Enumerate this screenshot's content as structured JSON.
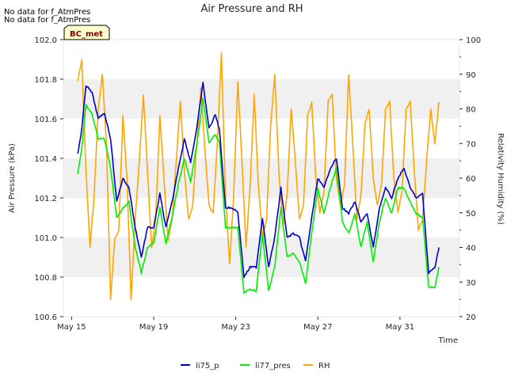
{
  "notes": [
    "No data for f_AtmPres",
    "No data for f_AtmPres"
  ],
  "badge": "BC_met",
  "chart_data": {
    "type": "line",
    "title": "Air Pressure and RH",
    "xlabel": "Time",
    "ylabel": "Air Pressure (kPa)",
    "y2label": "Relativity Humidity (%)",
    "xlim_days": [
      14.6,
      33.9
    ],
    "ylim": [
      100.6,
      102.0
    ],
    "y2lim": [
      20,
      100
    ],
    "x_ticks": [
      {
        "day": 15,
        "label": "May 15"
      },
      {
        "day": 19,
        "label": "May 19"
      },
      {
        "day": 23,
        "label": "May 23"
      },
      {
        "day": 27,
        "label": "May 27"
      },
      {
        "day": 31,
        "label": "May 31"
      }
    ],
    "y_ticks": [
      "100.6",
      "100.8",
      "101.0",
      "101.2",
      "101.4",
      "101.6",
      "101.8",
      "102.0"
    ],
    "y2_ticks": [
      "20",
      "30",
      "40",
      "50",
      "60",
      "70",
      "80",
      "90",
      "100"
    ],
    "bands": [
      [
        100.8,
        101.0
      ],
      [
        101.2,
        101.4
      ],
      [
        101.6,
        101.8
      ]
    ],
    "legend_position": "bottom-center",
    "colors": {
      "li75_p": "#0000cc",
      "li77_pres": "#00ee00",
      "RH": "#ffa500",
      "band": "#f0f0f0"
    },
    "series": [
      {
        "name": "li75_p",
        "axis": "left",
        "x": [
          15.3,
          15.5,
          15.7,
          16.0,
          16.3,
          16.6,
          16.9,
          17.2,
          17.5,
          17.8,
          18.1,
          18.4,
          18.7,
          19.0,
          19.3,
          19.6,
          19.9,
          20.2,
          20.5,
          20.8,
          21.1,
          21.4,
          21.7,
          22.0,
          22.2,
          22.5,
          22.8,
          23.1,
          23.4,
          23.7,
          24.0,
          24.3,
          24.6,
          24.9,
          25.2,
          25.5,
          25.8,
          26.1,
          26.4,
          26.7,
          27.0,
          27.3,
          27.6,
          27.9,
          28.2,
          28.5,
          28.8,
          29.1,
          29.4,
          29.7,
          30.0,
          30.3,
          30.6,
          30.9,
          31.2,
          31.5,
          31.8,
          32.1,
          32.4,
          32.7,
          32.9
        ],
        "y": [
          101.42,
          101.55,
          101.77,
          101.73,
          101.6,
          101.63,
          101.5,
          101.18,
          101.3,
          101.25,
          101.05,
          100.9,
          101.05,
          101.05,
          101.22,
          101.05,
          101.18,
          101.35,
          101.5,
          101.38,
          101.55,
          101.78,
          101.55,
          101.62,
          101.55,
          101.15,
          101.15,
          101.13,
          100.8,
          100.85,
          100.85,
          101.1,
          100.85,
          101.0,
          101.25,
          101.0,
          101.02,
          101.0,
          100.88,
          101.1,
          101.3,
          101.25,
          101.35,
          101.4,
          101.15,
          101.12,
          101.18,
          101.08,
          101.12,
          100.95,
          101.15,
          101.25,
          101.2,
          101.3,
          101.35,
          101.25,
          101.2,
          101.22,
          100.82,
          100.85,
          100.95
        ]
      },
      {
        "name": "li77_pres",
        "axis": "left",
        "x": [
          15.3,
          15.5,
          15.7,
          16.0,
          16.3,
          16.6,
          16.9,
          17.2,
          17.5,
          17.8,
          18.1,
          18.4,
          18.7,
          19.0,
          19.3,
          19.6,
          19.9,
          20.2,
          20.5,
          20.8,
          21.1,
          21.4,
          21.7,
          22.0,
          22.2,
          22.5,
          22.8,
          23.1,
          23.4,
          23.7,
          24.0,
          24.3,
          24.6,
          24.9,
          25.2,
          25.5,
          25.8,
          26.1,
          26.4,
          26.7,
          27.0,
          27.3,
          27.6,
          27.9,
          28.2,
          28.5,
          28.8,
          29.1,
          29.4,
          29.7,
          30.0,
          30.3,
          30.6,
          30.9,
          31.2,
          31.5,
          31.8,
          32.1,
          32.4,
          32.7,
          32.9
        ],
        "y": [
          101.32,
          101.45,
          101.67,
          101.62,
          101.5,
          101.5,
          101.35,
          101.1,
          101.15,
          101.18,
          100.95,
          100.82,
          100.95,
          100.97,
          101.15,
          100.97,
          101.1,
          101.27,
          101.4,
          101.28,
          101.47,
          101.7,
          101.48,
          101.52,
          101.48,
          101.05,
          101.05,
          101.05,
          100.72,
          100.74,
          100.73,
          101.02,
          100.73,
          100.85,
          101.15,
          100.9,
          100.92,
          100.88,
          100.77,
          101.02,
          101.25,
          101.12,
          101.25,
          101.35,
          101.08,
          101.02,
          101.12,
          100.95,
          101.08,
          100.88,
          101.08,
          101.2,
          101.12,
          101.25,
          101.25,
          101.18,
          101.12,
          101.1,
          100.75,
          100.75,
          100.85
        ]
      },
      {
        "name": "RH",
        "axis": "right",
        "x": [
          15.3,
          15.5,
          15.7,
          15.9,
          16.1,
          16.3,
          16.5,
          16.7,
          16.9,
          17.1,
          17.3,
          17.5,
          17.7,
          17.9,
          18.1,
          18.3,
          18.5,
          18.7,
          18.9,
          19.1,
          19.3,
          19.5,
          19.7,
          19.9,
          20.1,
          20.3,
          20.5,
          20.7,
          20.9,
          21.1,
          21.3,
          21.5,
          21.7,
          21.9,
          22.1,
          22.3,
          22.5,
          22.7,
          22.9,
          23.1,
          23.3,
          23.5,
          23.7,
          23.9,
          24.1,
          24.3,
          24.5,
          24.7,
          24.9,
          25.1,
          25.3,
          25.5,
          25.7,
          25.9,
          26.1,
          26.3,
          26.5,
          26.7,
          26.9,
          27.1,
          27.3,
          27.5,
          27.7,
          27.9,
          28.1,
          28.3,
          28.5,
          28.7,
          28.9,
          29.1,
          29.3,
          29.5,
          29.7,
          29.9,
          30.1,
          30.3,
          30.5,
          30.7,
          30.9,
          31.1,
          31.3,
          31.5,
          31.7,
          31.9,
          32.1,
          32.3,
          32.5,
          32.7,
          32.9
        ],
        "y": [
          88,
          94,
          62,
          40,
          55,
          80,
          90,
          70,
          25,
          42,
          45,
          78,
          60,
          25,
          48,
          65,
          84,
          62,
          40,
          48,
          78,
          60,
          42,
          48,
          65,
          82,
          62,
          48,
          52,
          70,
          86,
          68,
          52,
          50,
          70,
          96,
          55,
          35,
          55,
          88,
          65,
          40,
          58,
          84,
          58,
          43,
          48,
          75,
          90,
          62,
          46,
          55,
          80,
          65,
          48,
          52,
          78,
          82,
          60,
          50,
          56,
          82,
          84,
          60,
          52,
          58,
          90,
          70,
          48,
          55,
          76,
          80,
          60,
          52,
          58,
          80,
          82,
          60,
          50,
          56,
          80,
          82,
          62,
          45,
          48,
          65,
          80,
          70,
          82
        ]
      }
    ]
  }
}
